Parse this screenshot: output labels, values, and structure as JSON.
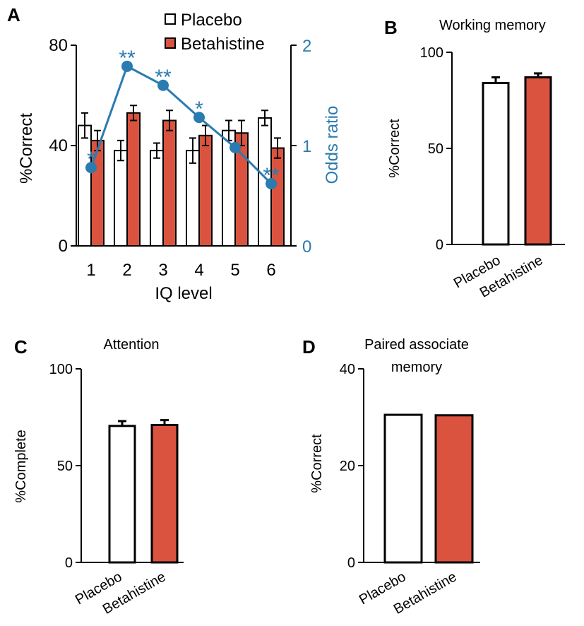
{
  "colors": {
    "placebo_fill": "#ffffff",
    "betahistine_fill": "#d9533f",
    "axis": "#000000",
    "odds": "#2a7bb0"
  },
  "chart_data": [
    {
      "panel": "A",
      "type": "bar",
      "title": "",
      "xlabel": "IQ level",
      "ylabel": "%Correct",
      "y2label": "Odds ratio",
      "categories": [
        "1",
        "2",
        "3",
        "4",
        "5",
        "6"
      ],
      "ylim": [
        0,
        80
      ],
      "yticks": [
        "0",
        "40",
        "80"
      ],
      "y2lim": [
        0,
        2
      ],
      "y2ticks": [
        "0",
        "1",
        "2"
      ],
      "legend": "top",
      "series": [
        {
          "name": "Placebo",
          "values": [
            48,
            38,
            38,
            38,
            46,
            51
          ],
          "errors": [
            5,
            4,
            3,
            5,
            4,
            3
          ]
        },
        {
          "name": "Betahistine",
          "values": [
            42,
            53,
            50,
            44,
            45,
            39
          ],
          "errors": [
            4,
            3,
            4,
            4,
            5,
            4
          ]
        }
      ],
      "odds_ratio": {
        "values": [
          0.78,
          1.79,
          1.6,
          1.28,
          0.98,
          0.62
        ],
        "annotations": [
          "*",
          "**",
          "**",
          "*",
          "",
          "**"
        ]
      }
    },
    {
      "panel": "B",
      "type": "bar",
      "title": "Working memory",
      "ylabel": "%Correct",
      "categories": [
        "Placebo",
        "Betahistine"
      ],
      "values": [
        84,
        87
      ],
      "errors": [
        3,
        2
      ],
      "ylim": [
        0,
        100
      ],
      "yticks": [
        "0",
        "50",
        "100"
      ]
    },
    {
      "panel": "C",
      "type": "bar",
      "title": "Attention",
      "ylabel": "%Complete",
      "categories": [
        "Placebo",
        "Betahistine"
      ],
      "values": [
        70.5,
        71
      ],
      "errors": [
        2.5,
        2.5
      ],
      "ylim": [
        0,
        100
      ],
      "yticks": [
        "0",
        "50",
        "100"
      ]
    },
    {
      "panel": "D",
      "type": "bar",
      "title": "Paired associate memory",
      "ylabel": "%Correct",
      "categories": [
        "Placebo",
        "Betahistine"
      ],
      "values": [
        30.5,
        30.4
      ],
      "errors": [
        0,
        0
      ],
      "ylim": [
        0,
        40
      ],
      "yticks": [
        "0",
        "20",
        "40"
      ]
    }
  ]
}
